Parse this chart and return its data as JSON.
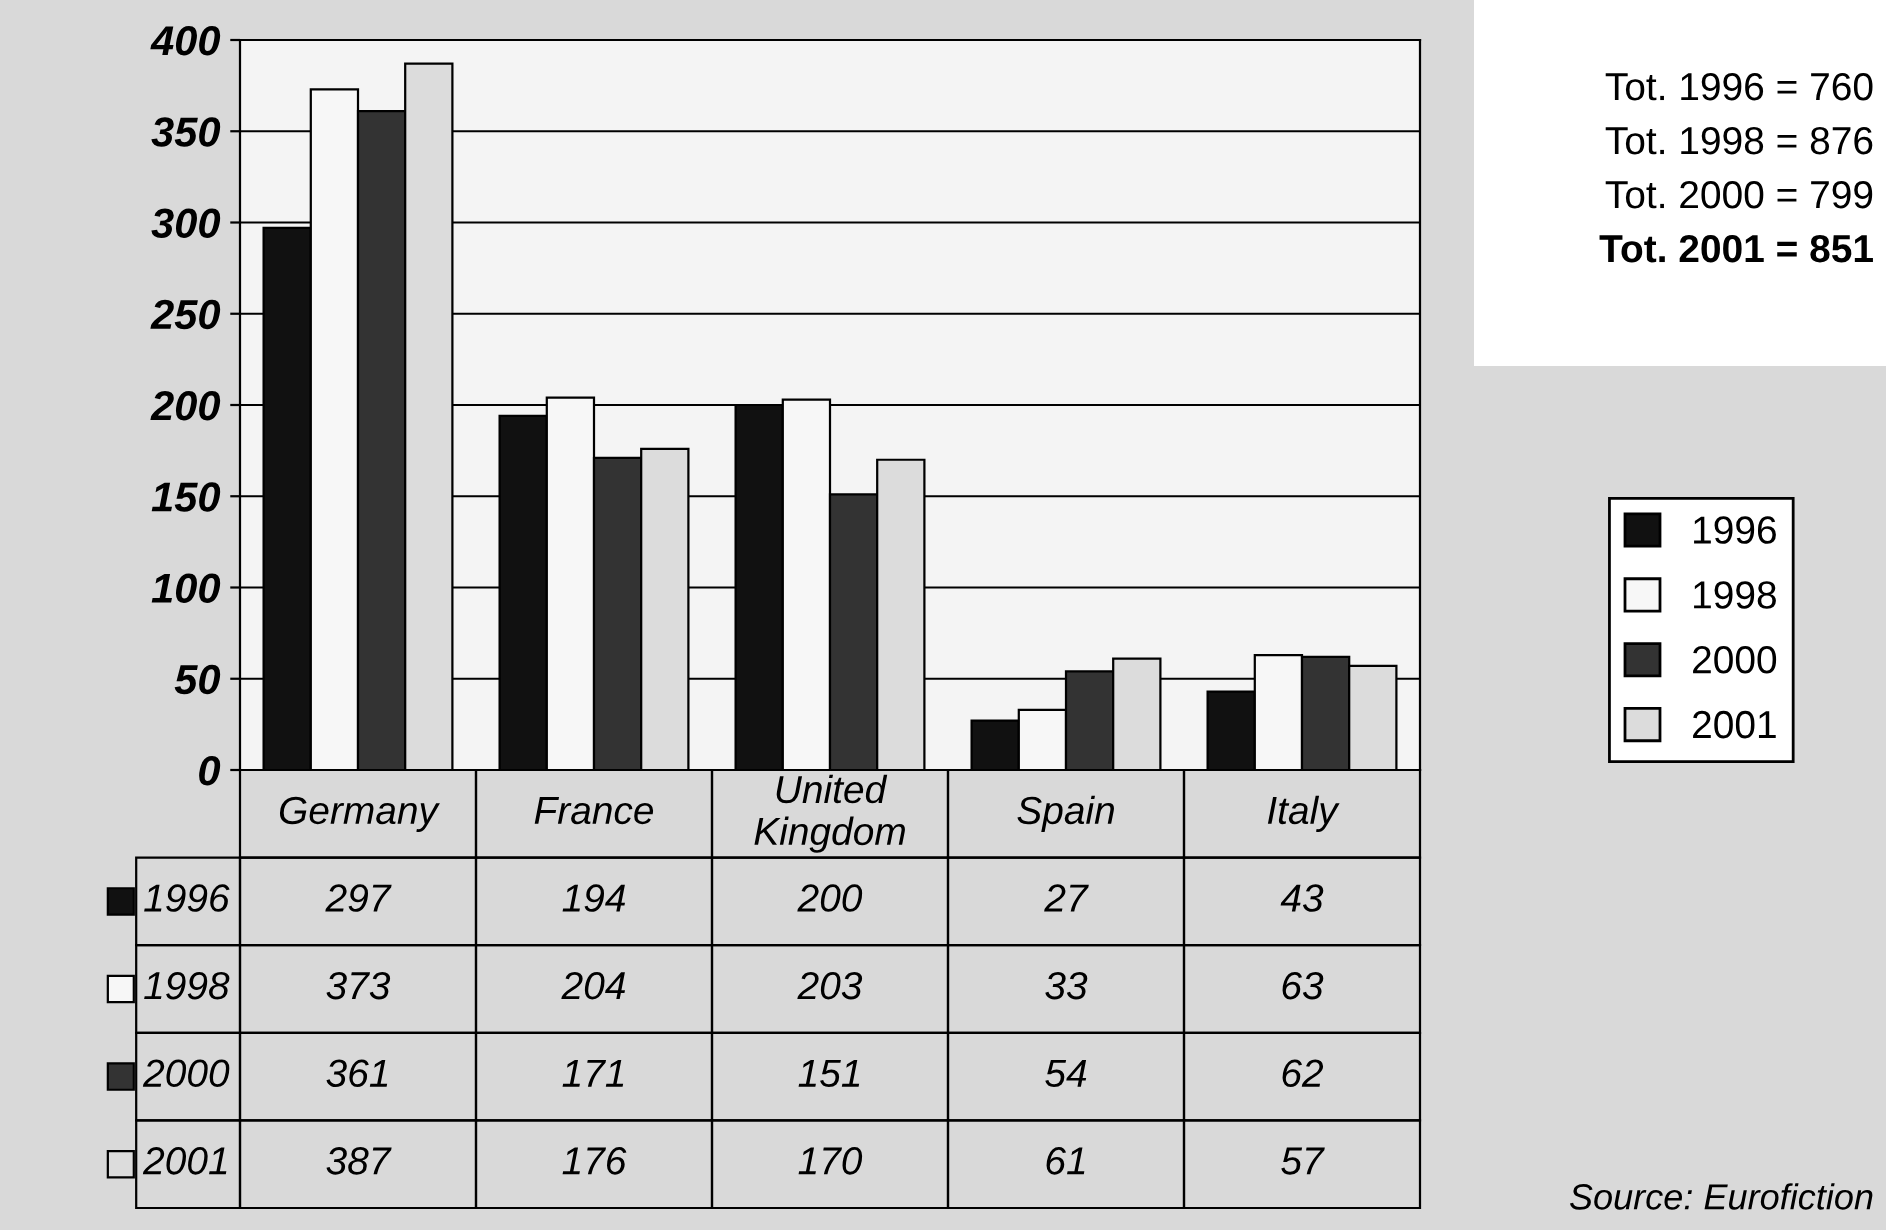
{
  "chart_data": {
    "type": "bar",
    "categories": [
      "Germany",
      "France",
      "United Kingdom",
      "Spain",
      "Italy"
    ],
    "series": [
      {
        "name": "1996",
        "color": "#111111",
        "values": [
          297,
          194,
          200,
          27,
          43
        ]
      },
      {
        "name": "1998",
        "color": "#f7f7f7",
        "values": [
          373,
          204,
          203,
          33,
          63
        ]
      },
      {
        "name": "2000",
        "color": "#333333",
        "values": [
          361,
          171,
          151,
          54,
          62
        ]
      },
      {
        "name": "2001",
        "color": "#dcdcdc",
        "values": [
          387,
          176,
          170,
          61,
          57
        ]
      }
    ],
    "ylim": [
      0,
      400
    ],
    "yticks": [
      0,
      50,
      100,
      150,
      200,
      250,
      300,
      350,
      400
    ],
    "grid": "y",
    "legend": "right",
    "data_labels": true,
    "annotations": [
      "Tot. 1996 = 760",
      "Tot. 1998 = 876",
      "Tot. 2000 = 799",
      "Tot. 2001 = 851",
      "Source: Eurofiction"
    ]
  }
}
